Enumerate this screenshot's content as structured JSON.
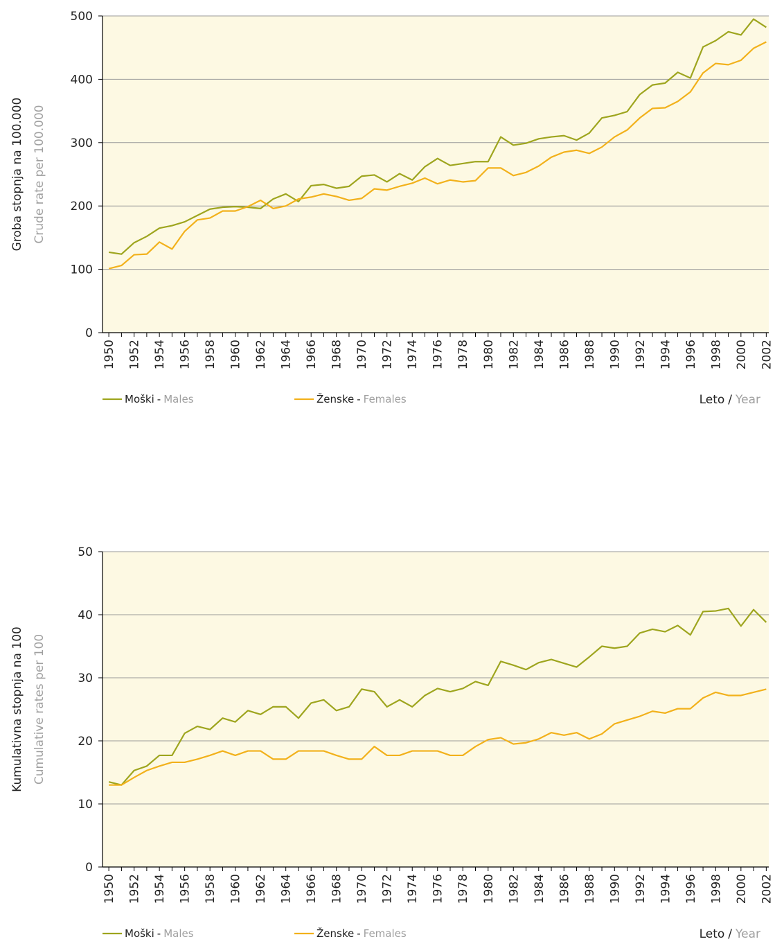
{
  "chart_data": [
    {
      "type": "line",
      "ylabel": "Groba stopnja na 100.000",
      "ylabel_en": "Crude rate per 100.000",
      "xlabel": "Leto",
      "xlabel_separator": "/",
      "xlabel_en": "Year",
      "legend_separator": "-",
      "x": [
        1950,
        1951,
        1952,
        1953,
        1954,
        1955,
        1956,
        1957,
        1958,
        1959,
        1960,
        1961,
        1962,
        1963,
        1964,
        1965,
        1966,
        1967,
        1968,
        1969,
        1970,
        1971,
        1972,
        1973,
        1974,
        1975,
        1976,
        1977,
        1978,
        1979,
        1980,
        1981,
        1982,
        1983,
        1984,
        1985,
        1986,
        1987,
        1988,
        1989,
        1990,
        1991,
        1992,
        1993,
        1994,
        1995,
        1996,
        1997,
        1998,
        1999,
        2000,
        2001,
        2002
      ],
      "xlim": [
        1949.5,
        2002.2
      ],
      "xticks": [
        1950,
        1952,
        1954,
        1956,
        1958,
        1960,
        1962,
        1964,
        1966,
        1968,
        1970,
        1972,
        1974,
        1976,
        1978,
        1980,
        1982,
        1984,
        1986,
        1988,
        1990,
        1992,
        1994,
        1996,
        1998,
        2000,
        2002
      ],
      "ylim": [
        0,
        500
      ],
      "yticks": [
        0,
        100,
        200,
        300,
        400,
        500
      ],
      "grid": true,
      "series": [
        {
          "name": "Moški",
          "name_en": "Males",
          "color": "#9ea51e",
          "values": [
            127,
            124,
            142,
            152,
            165,
            169,
            175,
            185,
            195,
            198,
            199,
            198,
            196,
            211,
            219,
            207,
            232,
            234,
            228,
            231,
            247,
            249,
            238,
            251,
            241,
            262,
            275,
            264,
            267,
            270,
            270,
            309,
            296,
            299,
            306,
            309,
            311,
            304,
            315,
            339,
            343,
            349,
            376,
            391,
            394,
            411,
            402,
            451,
            461,
            475,
            470,
            495,
            482
          ]
        },
        {
          "name": "Ženske",
          "name_en": "Females",
          "color": "#f2b11b",
          "values": [
            101,
            106,
            123,
            124,
            143,
            132,
            160,
            178,
            181,
            192,
            192,
            199,
            209,
            196,
            200,
            211,
            214,
            219,
            215,
            209,
            212,
            227,
            225,
            231,
            236,
            244,
            235,
            241,
            238,
            240,
            260,
            260,
            248,
            253,
            263,
            277,
            285,
            288,
            283,
            293,
            309,
            320,
            339,
            354,
            355,
            365,
            380,
            410,
            425,
            423,
            430,
            449,
            459
          ]
        }
      ]
    },
    {
      "type": "line",
      "ylabel": "Kumulativna stopnja na 100",
      "ylabel_en": "Cumulative rates per 100",
      "xlabel": "Leto",
      "xlabel_separator": "/",
      "xlabel_en": "Year",
      "legend_separator": "-",
      "x": [
        1950,
        1951,
        1952,
        1953,
        1954,
        1955,
        1956,
        1957,
        1958,
        1959,
        1960,
        1961,
        1962,
        1963,
        1964,
        1965,
        1966,
        1967,
        1968,
        1969,
        1970,
        1971,
        1972,
        1973,
        1974,
        1975,
        1976,
        1977,
        1978,
        1979,
        1980,
        1981,
        1982,
        1983,
        1984,
        1985,
        1986,
        1987,
        1988,
        1989,
        1990,
        1991,
        1992,
        1993,
        1994,
        1995,
        1996,
        1997,
        1998,
        1999,
        2000,
        2001,
        2002
      ],
      "xlim": [
        1949.5,
        2002.2
      ],
      "xticks": [
        1950,
        1952,
        1954,
        1956,
        1958,
        1960,
        1962,
        1964,
        1966,
        1968,
        1970,
        1972,
        1974,
        1976,
        1978,
        1980,
        1982,
        1984,
        1986,
        1988,
        1990,
        1992,
        1994,
        1996,
        1998,
        2000,
        2002
      ],
      "ylim": [
        0,
        50
      ],
      "yticks": [
        0,
        10,
        20,
        30,
        40,
        50
      ],
      "grid": true,
      "series": [
        {
          "name": "Moški",
          "name_en": "Males",
          "color": "#9ea51e",
          "values": [
            13.5,
            13.0,
            15.3,
            16.0,
            17.7,
            17.7,
            21.2,
            22.3,
            21.8,
            23.6,
            23.0,
            24.8,
            24.2,
            25.4,
            25.4,
            23.6,
            26.0,
            26.5,
            24.8,
            25.4,
            28.2,
            27.8,
            25.4,
            26.5,
            25.4,
            27.2,
            28.3,
            27.8,
            28.3,
            29.4,
            28.8,
            32.6,
            32.0,
            31.3,
            32.4,
            32.9,
            32.3,
            31.7,
            33.3,
            35.0,
            34.7,
            35.0,
            37.1,
            37.7,
            37.3,
            38.3,
            36.8,
            40.5,
            40.6,
            41.0,
            38.2,
            40.8,
            38.8
          ]
        },
        {
          "name": "Ženske",
          "name_en": "Females",
          "color": "#f2b11b",
          "values": [
            13.0,
            13.0,
            14.2,
            15.3,
            16.0,
            16.6,
            16.6,
            17.1,
            17.7,
            18.4,
            17.7,
            18.4,
            18.4,
            17.1,
            17.1,
            18.4,
            18.4,
            18.4,
            17.7,
            17.1,
            17.1,
            19.1,
            17.7,
            17.7,
            18.4,
            18.4,
            18.4,
            17.7,
            17.7,
            19.1,
            20.2,
            20.5,
            19.5,
            19.7,
            20.3,
            21.3,
            20.9,
            21.3,
            20.3,
            21.1,
            22.7,
            23.3,
            23.9,
            24.7,
            24.4,
            25.1,
            25.1,
            26.8,
            27.7,
            27.2,
            27.2,
            27.7,
            28.2
          ]
        }
      ]
    }
  ]
}
